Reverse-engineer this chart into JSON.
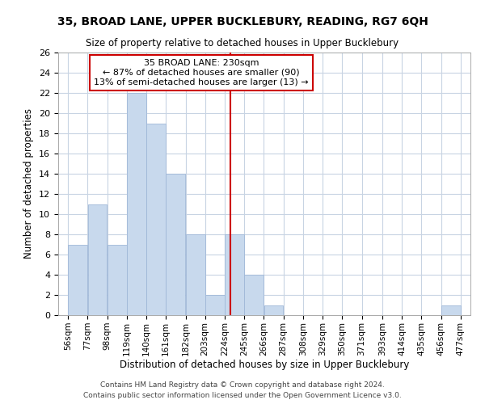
{
  "title": "35, BROAD LANE, UPPER BUCKLEBURY, READING, RG7 6QH",
  "subtitle": "Size of property relative to detached houses in Upper Bucklebury",
  "xlabel": "Distribution of detached houses by size in Upper Bucklebury",
  "ylabel": "Number of detached properties",
  "bin_edges": [
    56,
    77,
    98,
    119,
    140,
    161,
    182,
    203,
    224,
    245,
    266,
    287,
    308,
    329,
    350,
    371,
    393,
    414,
    435,
    456,
    477
  ],
  "bin_heights": [
    7,
    11,
    7,
    22,
    19,
    14,
    8,
    2,
    8,
    4,
    1,
    0,
    0,
    0,
    0,
    0,
    0,
    0,
    0,
    1
  ],
  "bar_color": "#c8d9ed",
  "bar_edgecolor": "#a0b8d8",
  "reference_line_x": 230,
  "reference_line_color": "#cc0000",
  "ylim": [
    0,
    26
  ],
  "yticks": [
    0,
    2,
    4,
    6,
    8,
    10,
    12,
    14,
    16,
    18,
    20,
    22,
    24,
    26
  ],
  "annotation_title": "35 BROAD LANE: 230sqm",
  "annotation_line1": "← 87% of detached houses are smaller (90)",
  "annotation_line2": "13% of semi-detached houses are larger (13) →",
  "annotation_box_color": "#ffffff",
  "annotation_box_edgecolor": "#cc0000",
  "footer_line1": "Contains HM Land Registry data © Crown copyright and database right 2024.",
  "footer_line2": "Contains public sector information licensed under the Open Government Licence v3.0.",
  "background_color": "#ffffff",
  "grid_color": "#c8d4e3"
}
